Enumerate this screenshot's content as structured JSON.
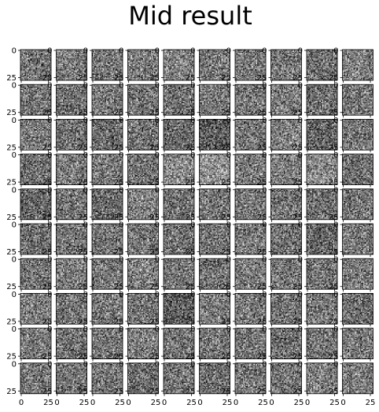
{
  "title": "Mid result",
  "chart_data": {
    "type": "heatmap",
    "title": "Mid result",
    "rows": 10,
    "cols": 10,
    "image_size": [
      28,
      28
    ],
    "colormap": "gray",
    "xticks": [
      "0",
      "25"
    ],
    "yticks": [
      "0",
      "25"
    ],
    "content": "random grayscale noise images",
    "mean_intensity": [
      [
        0.46,
        0.48,
        0.47,
        0.48,
        0.52,
        0.47,
        0.48,
        0.47,
        0.44,
        0.5
      ],
      [
        0.46,
        0.45,
        0.47,
        0.46,
        0.44,
        0.48,
        0.47,
        0.49,
        0.43,
        0.47
      ],
      [
        0.5,
        0.44,
        0.43,
        0.45,
        0.42,
        0.36,
        0.47,
        0.5,
        0.4,
        0.47
      ],
      [
        0.44,
        0.49,
        0.48,
        0.46,
        0.54,
        0.58,
        0.48,
        0.5,
        0.55,
        0.44
      ],
      [
        0.4,
        0.46,
        0.42,
        0.5,
        0.45,
        0.46,
        0.48,
        0.46,
        0.44,
        0.46
      ],
      [
        0.44,
        0.47,
        0.45,
        0.47,
        0.44,
        0.46,
        0.48,
        0.45,
        0.4,
        0.48
      ],
      [
        0.47,
        0.49,
        0.47,
        0.5,
        0.47,
        0.45,
        0.49,
        0.47,
        0.46,
        0.49
      ],
      [
        0.5,
        0.46,
        0.47,
        0.46,
        0.36,
        0.49,
        0.47,
        0.45,
        0.48,
        0.43
      ],
      [
        0.48,
        0.45,
        0.47,
        0.49,
        0.46,
        0.46,
        0.47,
        0.44,
        0.46,
        0.48
      ],
      [
        0.47,
        0.47,
        0.46,
        0.43,
        0.46,
        0.44,
        0.47,
        0.46,
        0.5,
        0.49
      ]
    ]
  }
}
